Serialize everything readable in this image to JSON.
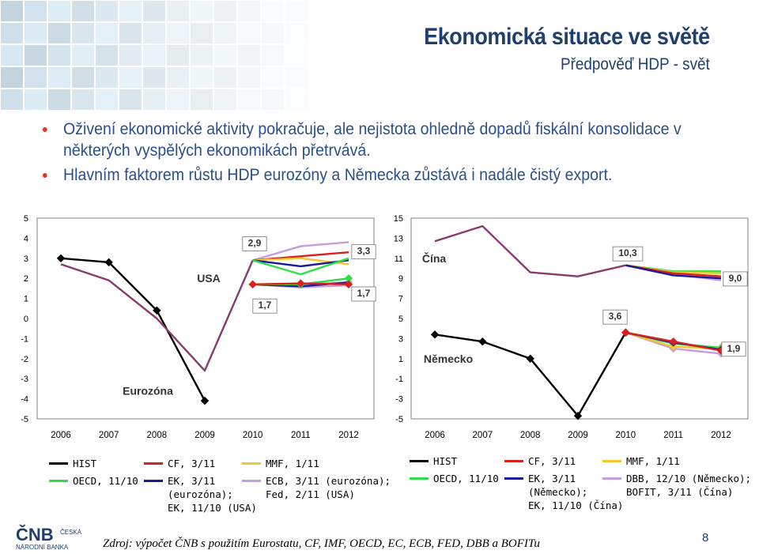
{
  "header": {
    "title": "Ekonomická situace ve světě",
    "subtitle": "Předpověď HDP - svět"
  },
  "bullets": [
    "Oživení ekonomické aktivity pokračuje, ale nejistota ohledně dopadů fiskální konsolidace v některých vyspělých ekonomikách přetrvává.",
    "Hlavním faktorem růstu HDP eurozóny a Německa zůstává i nadále čistý export."
  ],
  "colors": {
    "HIST": "#000000",
    "CF": "#d8201c",
    "MMF": "#f2c832",
    "OECD": "#2ee046",
    "EK": "#1a1a9e",
    "ECB": "#c79de0",
    "EK_USA": "#8b3a6e",
    "accent": "#1f3f6e"
  },
  "chart_data": [
    {
      "type": "line",
      "x": [
        "2006",
        "2007",
        "2008",
        "2009",
        "2010",
        "2011",
        "2012"
      ],
      "ylim": [
        -5,
        5
      ],
      "yticks": [
        "-5",
        "-4",
        "-3",
        "-2",
        "-1",
        "0",
        "1",
        "2",
        "3",
        "4",
        "5"
      ],
      "labels": {
        "usa": "USA",
        "ez": "Eurozóna"
      },
      "annotations": [
        "2,9",
        "3,3",
        "1,7",
        "1,7"
      ],
      "series": [
        {
          "key": "ez_hist",
          "color_key": "HIST",
          "marker": "diamond",
          "points": [
            [
              "2006",
              3.0
            ],
            [
              "2007",
              2.8
            ],
            [
              "2008",
              0.4
            ],
            [
              "2009",
              -4.1
            ]
          ]
        },
        {
          "key": "ez_ecb",
          "color_key": "ECB",
          "marker": "diamond",
          "points": [
            [
              "2010",
              1.7
            ],
            [
              "2011",
              1.7
            ],
            [
              "2012",
              1.8
            ]
          ]
        },
        {
          "key": "ez_fed",
          "color_key": "ECB",
          "marker": "none",
          "points": [
            [
              "2010",
              1.7
            ],
            [
              "2011",
              1.55
            ],
            [
              "2012",
              1.65
            ]
          ]
        },
        {
          "key": "ez_ek",
          "color_key": "EK",
          "marker": "none",
          "points": [
            [
              "2010",
              1.7
            ],
            [
              "2011",
              1.6
            ],
            [
              "2012",
              1.8
            ]
          ]
        },
        {
          "key": "ez_oecd",
          "color_key": "OECD",
          "marker": "diamond",
          "points": [
            [
              "2010",
              1.7
            ],
            [
              "2011",
              1.7
            ],
            [
              "2012",
              2.0
            ]
          ]
        },
        {
          "key": "ez_cf",
          "color_key": "CF",
          "marker": "diamond",
          "points": [
            [
              "2010",
              1.7
            ],
            [
              "2011",
              1.75
            ],
            [
              "2012",
              1.7
            ]
          ]
        },
        {
          "key": "usa_ek",
          "color_key": "EK_USA",
          "marker": "none",
          "points": [
            [
              "2006",
              2.7
            ],
            [
              "2007",
              1.9
            ],
            [
              "2008",
              0.0
            ],
            [
              "2009",
              -2.6
            ],
            [
              "2010",
              2.9
            ]
          ]
        },
        {
          "key": "usa_ecb",
          "color_key": "ECB",
          "marker": "none",
          "points": [
            [
              "2010",
              2.9
            ],
            [
              "2011",
              3.6
            ],
            [
              "2012",
              3.8
            ]
          ]
        },
        {
          "key": "usa_cf",
          "color_key": "CF",
          "marker": "none",
          "points": [
            [
              "2010",
              2.9
            ],
            [
              "2011",
              3.1
            ],
            [
              "2012",
              3.3
            ]
          ]
        },
        {
          "key": "usa_mmf",
          "color_key": "MMF",
          "marker": "none",
          "points": [
            [
              "2010",
              2.9
            ],
            [
              "2011",
              3.0
            ],
            [
              "2012",
              2.7
            ]
          ]
        },
        {
          "key": "usa_ek2",
          "color_key": "EK",
          "marker": "none",
          "points": [
            [
              "2010",
              2.9
            ],
            [
              "2011",
              2.6
            ],
            [
              "2012",
              2.9
            ]
          ]
        },
        {
          "key": "usa_oecd",
          "color_key": "OECD",
          "marker": "none",
          "points": [
            [
              "2010",
              2.9
            ],
            [
              "2011",
              2.2
            ],
            [
              "2012",
              3.0
            ]
          ]
        }
      ]
    },
    {
      "type": "line",
      "x": [
        "2006",
        "2007",
        "2008",
        "2009",
        "2010",
        "2011",
        "2012"
      ],
      "ylim": [
        -5,
        15
      ],
      "yticks": [
        "-5",
        "-3",
        "-1",
        "1",
        "3",
        "5",
        "7",
        "9",
        "11",
        "13",
        "15"
      ],
      "labels": {
        "china": "Čína",
        "de": "Německo"
      },
      "annotations": [
        "10,3",
        "9,0",
        "3,6",
        "1,9"
      ],
      "series": [
        {
          "key": "cn_hist",
          "color_key": "EK_USA",
          "marker": "none",
          "points": [
            [
              "2006",
              12.7
            ],
            [
              "2007",
              14.2
            ],
            [
              "2008",
              9.6
            ],
            [
              "2009",
              9.2
            ],
            [
              "2010",
              10.3
            ]
          ]
        },
        {
          "key": "cn_dbb",
          "color_key": "ECB",
          "marker": "none",
          "points": [
            [
              "2010",
              10.3
            ],
            [
              "2011",
              9.4
            ],
            [
              "2012",
              8.8
            ]
          ]
        },
        {
          "key": "cn_oecd",
          "color_key": "OECD",
          "marker": "none",
          "points": [
            [
              "2010",
              10.3
            ],
            [
              "2011",
              9.7
            ],
            [
              "2012",
              9.7
            ]
          ]
        },
        {
          "key": "cn_mmf",
          "color_key": "MMF",
          "marker": "none",
          "points": [
            [
              "2010",
              10.3
            ],
            [
              "2011",
              9.6
            ],
            [
              "2012",
              9.5
            ]
          ]
        },
        {
          "key": "cn_cf",
          "color_key": "CF",
          "marker": "none",
          "points": [
            [
              "2010",
              10.3
            ],
            [
              "2011",
              9.5
            ],
            [
              "2012",
              9.2
            ]
          ]
        },
        {
          "key": "cn_ek",
          "color_key": "EK",
          "marker": "none",
          "points": [
            [
              "2010",
              10.3
            ],
            [
              "2011",
              9.3
            ],
            [
              "2012",
              9.0
            ]
          ]
        },
        {
          "key": "de_hist",
          "color_key": "HIST",
          "marker": "diamond",
          "points": [
            [
              "2006",
              3.4
            ],
            [
              "2007",
              2.7
            ],
            [
              "2008",
              1.0
            ],
            [
              "2009",
              -4.7
            ],
            [
              "2010",
              3.6
            ]
          ]
        },
        {
          "key": "de_dbb",
          "color_key": "ECB",
          "marker": "diamond",
          "points": [
            [
              "2010",
              3.6
            ],
            [
              "2011",
              2.0
            ],
            [
              "2012",
              1.5
            ]
          ]
        },
        {
          "key": "de_oecd",
          "color_key": "OECD",
          "marker": "diamond",
          "points": [
            [
              "2010",
              3.6
            ],
            [
              "2011",
              2.5
            ],
            [
              "2012",
              2.1
            ]
          ]
        },
        {
          "key": "de_mmf",
          "color_key": "MMF",
          "marker": "diamond",
          "points": [
            [
              "2010",
              3.6
            ],
            [
              "2011",
              2.2
            ],
            [
              "2012",
              2.0
            ]
          ]
        },
        {
          "key": "de_ek",
          "color_key": "EK",
          "marker": "diamond",
          "points": [
            [
              "2010",
              3.6
            ],
            [
              "2011",
              2.6
            ],
            [
              "2012",
              1.9
            ]
          ]
        },
        {
          "key": "de_cf",
          "color_key": "CF",
          "marker": "diamond",
          "points": [
            [
              "2010",
              3.6
            ],
            [
              "2011",
              2.7
            ],
            [
              "2012",
              1.8
            ]
          ]
        }
      ]
    }
  ],
  "legend_left": [
    {
      "color_key": "HIST",
      "text": "HIST"
    },
    {
      "color_key": "CF",
      "text": "CF, 3/11"
    },
    {
      "color_key": "MMF",
      "text": "MMF, 1/11"
    },
    {
      "color_key": "OECD",
      "text": "OECD, 11/10"
    },
    {
      "color_key": "EK",
      "text": "EK, 3/11\n(eurozóna);\nEK, 11/10 (USA)"
    },
    {
      "color_key": "ECB",
      "text": "ECB, 3/11 (eurozóna);\nFed, 2/11 (USA)"
    }
  ],
  "legend_right": [
    {
      "color_key": "HIST",
      "text": "HIST"
    },
    {
      "color_key": "CF",
      "text": "CF, 3/11"
    },
    {
      "color_key": "MMF",
      "text": "MMF, 1/11"
    },
    {
      "color_key": "OECD",
      "text": "OECD, 11/10"
    },
    {
      "color_key": "EK",
      "text": "EK, 3/11\n(Německo);\nEK, 11/10 (Čína)"
    },
    {
      "color_key": "ECB",
      "text": "DBB, 12/10 (Německo);\nBOFIT, 3/11 (Čína)"
    }
  ],
  "footer": {
    "source": "Zdroj: výpočet ČNB s použitím Eurostatu, CF, IMF, OECD, EC, ECB, FED, DBB a BOFITu",
    "page": "8",
    "logo_line1": "ČNB",
    "logo_line2": "ČESKÁ",
    "logo_line3": "NÁRODNÍ BANKA"
  }
}
